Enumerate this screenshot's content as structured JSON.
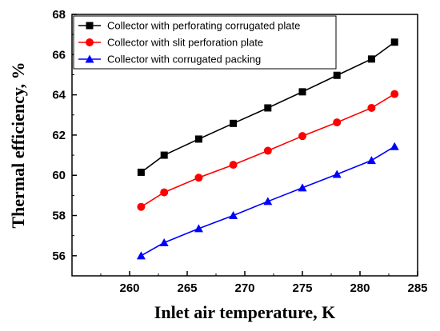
{
  "chart_data": {
    "type": "line",
    "title": "",
    "xlabel": "Inlet air temperature, K",
    "ylabel": "Thermal efficiency, %",
    "xlim": [
      255,
      285
    ],
    "ylim": [
      55,
      68
    ],
    "xticks": [
      260,
      265,
      270,
      275,
      280,
      285
    ],
    "yticks": [
      56,
      58,
      60,
      62,
      64,
      66,
      68
    ],
    "legend_position": "top-left",
    "grid": false,
    "x": [
      261,
      263,
      266,
      269,
      272,
      275,
      278,
      281,
      283
    ],
    "series": [
      {
        "name": "Collector with perforating corrugated plate",
        "color": "#000000",
        "marker": "square",
        "values": [
          60.15,
          61.0,
          61.8,
          62.58,
          63.35,
          64.15,
          64.97,
          65.78,
          66.62
        ]
      },
      {
        "name": "Collector with slit perforation plate",
        "color": "#ff0000",
        "marker": "circle",
        "values": [
          58.43,
          59.15,
          59.88,
          60.52,
          61.22,
          61.95,
          62.63,
          63.35,
          64.04
        ]
      },
      {
        "name": "Collector with corrugated packing",
        "color": "#0000ff",
        "marker": "triangle",
        "values": [
          56.0,
          56.65,
          57.35,
          58.0,
          58.7,
          59.38,
          60.05,
          60.74,
          61.43
        ]
      }
    ]
  }
}
